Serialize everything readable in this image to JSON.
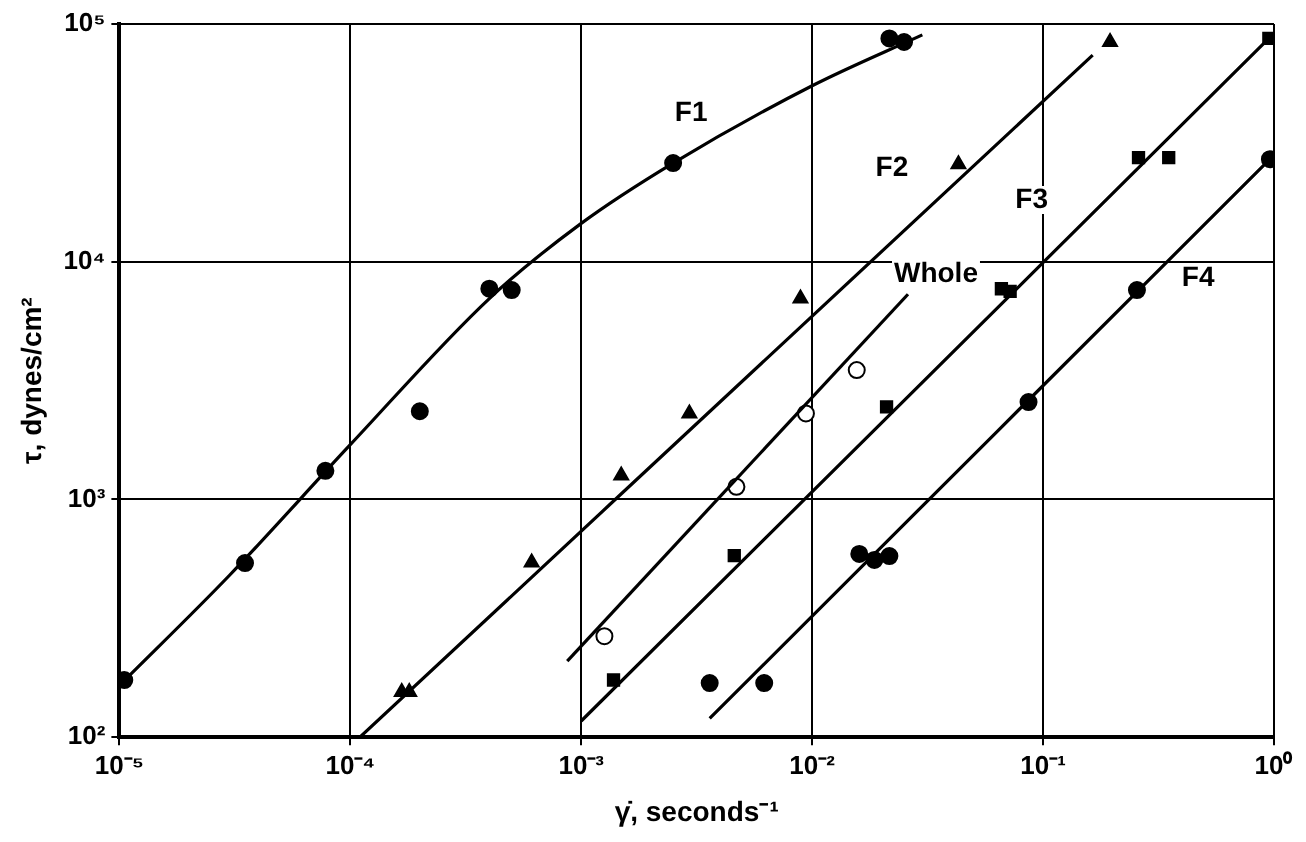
{
  "chart_data": {
    "type": "scatter",
    "xlabel": "γ̇, seconds⁻¹",
    "ylabel": "τ, dynes/cm²",
    "log": "xy",
    "grid": true,
    "legend": false,
    "xlim": [
      1e-05,
      1
    ],
    "ylim": [
      100,
      100000
    ],
    "xticks": [
      {
        "value": 1e-05,
        "label": "10⁻⁵"
      },
      {
        "value": 0.0001,
        "label": "10⁻⁴"
      },
      {
        "value": 0.001,
        "label": "10⁻³"
      },
      {
        "value": 0.01,
        "label": "10⁻²"
      },
      {
        "value": 0.1,
        "label": "10⁻¹"
      },
      {
        "value": 1,
        "label": "10⁰"
      }
    ],
    "yticks": [
      {
        "value": 100,
        "label": "10²"
      },
      {
        "value": 1000,
        "label": "10³"
      },
      {
        "value": 10000,
        "label": "10⁴"
      },
      {
        "value": 100000,
        "label": "10⁵"
      }
    ],
    "series": [
      {
        "type": "line",
        "name": "F1",
        "marker": "none",
        "color": "#000000",
        "x": [
          1e-05,
          3e-05,
          0.0001,
          0.0004,
          0.001,
          0.0025,
          0.01,
          0.03
        ],
        "values": [
          165,
          480,
          1700,
          7000,
          14500,
          26000,
          55000,
          90000
        ]
      },
      {
        "type": "line",
        "name": "F2",
        "marker": "none",
        "color": "#000000",
        "x": [
          0.00011,
          0.164
        ],
        "values": [
          100,
          74000
        ]
      },
      {
        "type": "line",
        "name": "Whole",
        "marker": "none",
        "color": "#000000",
        "x": [
          0.00087,
          0.026
        ],
        "values": [
          209,
          7300
        ]
      },
      {
        "type": "line",
        "name": "F3",
        "marker": "none",
        "color": "#000000",
        "x": [
          0.001,
          0.95
        ],
        "values": [
          117,
          87000
        ]
      },
      {
        "type": "line",
        "name": "F4",
        "marker": "none",
        "color": "#000000",
        "x": [
          0.0036,
          0.96
        ],
        "values": [
          120,
          27000
        ]
      },
      {
        "marker": "circle",
        "color": "#000000",
        "x": [
          1.05e-05,
          3.5e-05,
          7.8e-05,
          0.0002,
          0.0004,
          0.0005,
          0.0025,
          0.0216,
          0.025
        ],
        "values": [
          174,
          540,
          1320,
          2350,
          7700,
          7600,
          26000,
          87000,
          84000
        ]
      },
      {
        "marker": "triangle",
        "color": "#000000",
        "x": [
          0.000167,
          0.00018,
          0.00061,
          0.00149,
          0.00294,
          0.0089,
          0.043,
          0.195
        ],
        "values": [
          155,
          155,
          543,
          1260,
          2300,
          7000,
          25700,
          84000
        ]
      },
      {
        "marker": "circle",
        "color": "#ffffff",
        "x": [
          0.00126,
          0.0047,
          0.0094,
          0.0156
        ],
        "values": [
          266,
          1130,
          2300,
          3500
        ]
      },
      {
        "marker": "square",
        "color": "#000000",
        "x": [
          0.00138,
          0.0046,
          0.021,
          0.066,
          0.072,
          0.259,
          0.35,
          0.95
        ],
        "values": [
          174,
          580,
          2450,
          7700,
          7500,
          27400,
          27400,
          87000
        ]
      },
      {
        "marker": "circle",
        "color": "#000000",
        "x": [
          0.0036,
          0.0062,
          0.016,
          0.0186,
          0.0216,
          0.0865,
          0.255,
          0.96
        ],
        "values": [
          169,
          169,
          590,
          557,
          578,
          2570,
          7600,
          27000
        ]
      }
    ]
  }
}
